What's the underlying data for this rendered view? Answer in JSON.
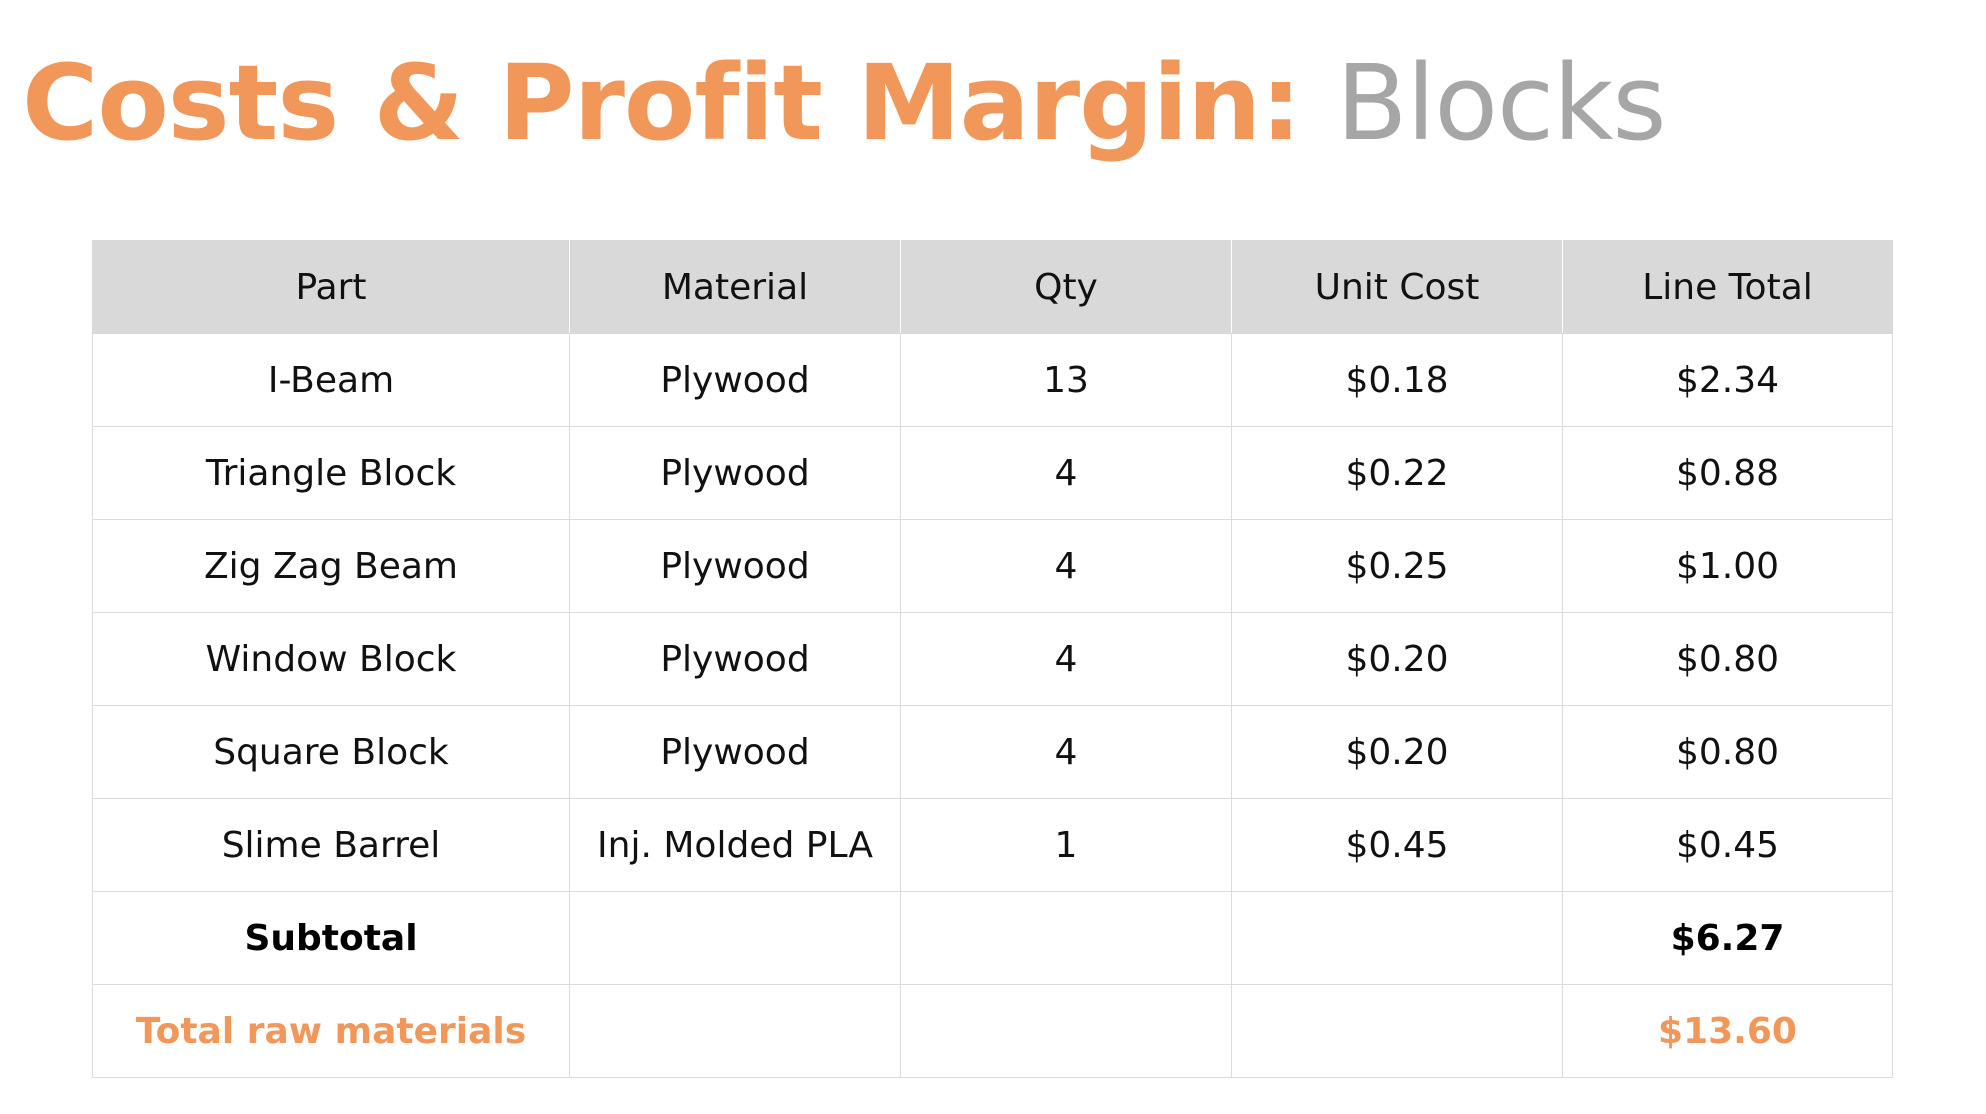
{
  "title": {
    "accent": "Costs & Profit Margin:",
    "subject": "Blocks"
  },
  "colors": {
    "accent": "#f2975a",
    "muted": "#a6a6a6",
    "header_bg": "#d9d9d9"
  },
  "table": {
    "headers": [
      "Part",
      "Material",
      "Qty",
      "Unit Cost",
      "Line Total"
    ],
    "rows": [
      [
        "I-Beam",
        "Plywood",
        "13",
        "$0.18",
        "$2.34"
      ],
      [
        "Triangle Block",
        "Plywood",
        "4",
        "$0.22",
        "$0.88"
      ],
      [
        "Zig Zag Beam",
        "Plywood",
        "4",
        "$0.25",
        "$1.00"
      ],
      [
        "Window Block",
        "Plywood",
        "4",
        "$0.20",
        "$0.80"
      ],
      [
        "Square Block",
        "Plywood",
        "4",
        "$0.20",
        "$0.80"
      ],
      [
        "Slime Barrel",
        "Inj. Molded PLA",
        "1",
        "$0.45",
        "$0.45"
      ]
    ],
    "subtotal": {
      "label": "Subtotal",
      "value": "$6.27"
    },
    "total": {
      "label": "Total raw materials",
      "value": "$13.60"
    }
  }
}
